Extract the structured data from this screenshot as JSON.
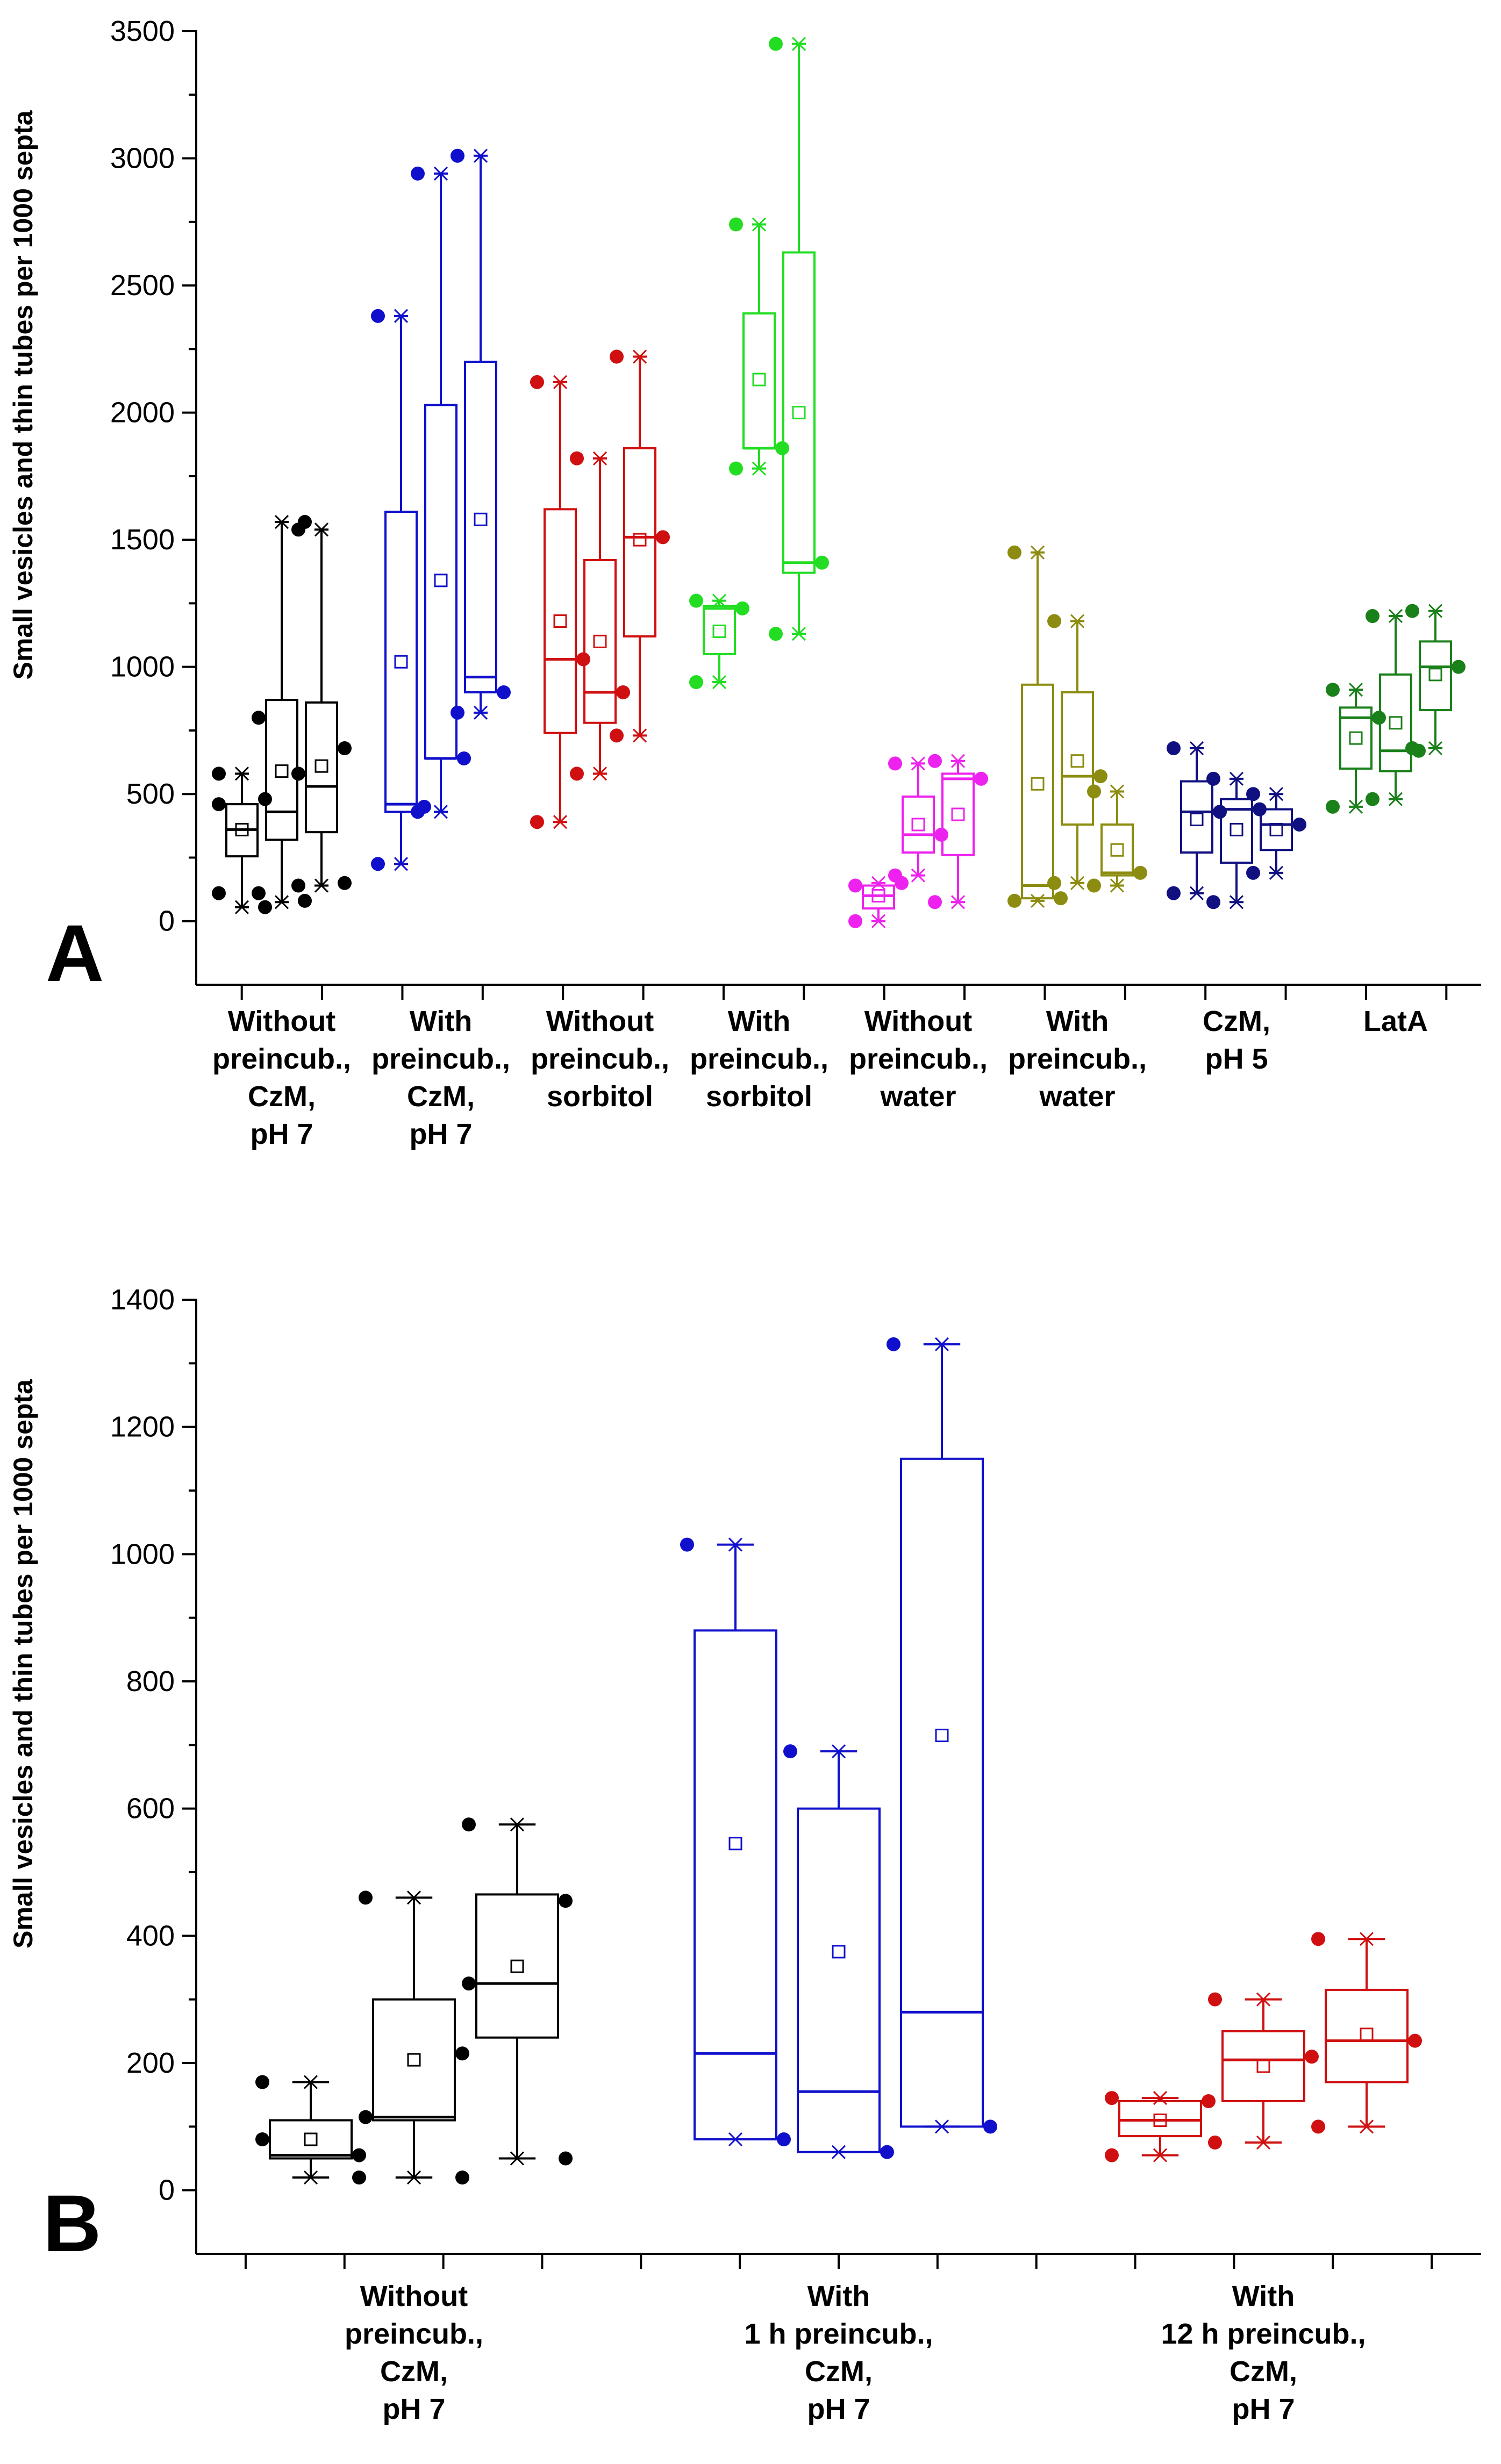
{
  "chart_data": [
    {
      "type": "box",
      "panel_label": "A",
      "ylabel": "Small vesicles and thin tubes per 1000 septa",
      "ylim": [
        -250,
        3500
      ],
      "yticks": [
        "0",
        "500",
        "1000",
        "1500",
        "2000",
        "2500",
        "3000",
        "3500"
      ],
      "groups": [
        {
          "label": [
            "Without",
            "preincub.,",
            "CzM,",
            "pH 7"
          ],
          "color": "#000000",
          "boxes": [
            {
              "q1": 255,
              "median": 360,
              "q3": 460,
              "mean": 360,
              "whisker_low": 55,
              "whisker_high": 580,
              "points": [
                110,
                55,
                460,
                480,
                580
              ]
            },
            {
              "q1": 320,
              "median": 430,
              "q3": 870,
              "mean": 590,
              "whisker_low": 75,
              "whisker_high": 1570,
              "points": [
                110,
                80,
                800,
                1570
              ]
            },
            {
              "q1": 350,
              "median": 530,
              "q3": 860,
              "mean": 610,
              "whisker_low": 140,
              "whisker_high": 1540,
              "points": [
                140,
                150,
                580,
                680,
                1540
              ]
            }
          ]
        },
        {
          "label": [
            "With",
            "preincub.,",
            "CzM,",
            "pH 7"
          ],
          "color": "#1010cc",
          "boxes": [
            {
              "q1": 430,
              "median": 460,
              "q3": 1610,
              "mean": 1020,
              "whisker_low": 225,
              "whisker_high": 2380,
              "points": [
                225,
                450,
                2380
              ]
            },
            {
              "q1": 640,
              "median": 640,
              "q3": 2030,
              "mean": 1340,
              "whisker_low": 430,
              "whisker_high": 2940,
              "points": [
                430,
                640,
                2940
              ]
            },
            {
              "q1": 900,
              "median": 960,
              "q3": 2200,
              "mean": 1580,
              "whisker_low": 820,
              "whisker_high": 3010,
              "points": [
                820,
                900,
                3010
              ]
            }
          ]
        },
        {
          "label": [
            "Without",
            "preincub.,",
            "sorbitol"
          ],
          "color": "#d01010",
          "boxes": [
            {
              "q1": 740,
              "median": 1030,
              "q3": 1620,
              "mean": 1180,
              "whisker_low": 390,
              "whisker_high": 2120,
              "points": [
                390,
                1030,
                2120
              ]
            },
            {
              "q1": 780,
              "median": 900,
              "q3": 1420,
              "mean": 1100,
              "whisker_low": 580,
              "whisker_high": 1820,
              "points": [
                580,
                900,
                1820
              ]
            },
            {
              "q1": 1120,
              "median": 1510,
              "q3": 1860,
              "mean": 1500,
              "whisker_low": 730,
              "whisker_high": 2220,
              "points": [
                730,
                1510,
                2220
              ]
            }
          ]
        },
        {
          "label": [
            "With",
            "preincub.,",
            "sorbitol"
          ],
          "color": "#22dd22",
          "boxes": [
            {
              "q1": 1050,
              "median": 1230,
              "q3": 1240,
              "mean": 1140,
              "whisker_low": 940,
              "whisker_high": 1260,
              "points": [
                940,
                1230,
                1260
              ]
            },
            {
              "q1": 1860,
              "median": 1860,
              "q3": 2390,
              "mean": 2130,
              "whisker_low": 1780,
              "whisker_high": 2740,
              "points": [
                1780,
                1860,
                2740
              ]
            },
            {
              "q1": 1370,
              "median": 1410,
              "q3": 2630,
              "mean": 2000,
              "whisker_low": 1130,
              "whisker_high": 3450,
              "points": [
                1130,
                1410,
                3450
              ]
            }
          ]
        },
        {
          "label": [
            "Without",
            "preincub.,",
            "water"
          ],
          "color": "#ee22ee",
          "boxes": [
            {
              "q1": 50,
              "median": 100,
              "q3": 140,
              "mean": 100,
              "whisker_low": 0,
              "whisker_high": 150,
              "points": [
                0,
                150,
                140
              ]
            },
            {
              "q1": 270,
              "median": 340,
              "q3": 490,
              "mean": 380,
              "whisker_low": 180,
              "whisker_high": 620,
              "points": [
                180,
                340,
                620
              ]
            },
            {
              "q1": 260,
              "median": 560,
              "q3": 580,
              "mean": 420,
              "whisker_low": 75,
              "whisker_high": 630,
              "points": [
                75,
                560,
                630
              ]
            }
          ]
        },
        {
          "label": [
            "With",
            "preincub.,",
            "water"
          ],
          "color": "#8c8c10",
          "boxes": [
            {
              "q1": 90,
              "median": 140,
              "q3": 930,
              "mean": 540,
              "whisker_low": 80,
              "whisker_high": 1450,
              "points": [
                80,
                90,
                1450
              ]
            },
            {
              "q1": 380,
              "median": 570,
              "q3": 900,
              "mean": 630,
              "whisker_low": 150,
              "whisker_high": 1180,
              "points": [
                150,
                570,
                1180
              ]
            },
            {
              "q1": 180,
              "median": 190,
              "q3": 380,
              "mean": 280,
              "whisker_low": 140,
              "whisker_high": 510,
              "points": [
                140,
                190,
                510
              ]
            }
          ]
        },
        {
          "label": [
            "CzM,",
            "pH 5"
          ],
          "color": "#101080",
          "boxes": [
            {
              "q1": 270,
              "median": 430,
              "q3": 550,
              "mean": 400,
              "whisker_low": 110,
              "whisker_high": 680,
              "points": [
                110,
                430,
                680
              ]
            },
            {
              "q1": 230,
              "median": 440,
              "q3": 480,
              "mean": 360,
              "whisker_low": 75,
              "whisker_high": 560,
              "points": [
                75,
                440,
                560
              ]
            },
            {
              "q1": 280,
              "median": 380,
              "q3": 440,
              "mean": 360,
              "whisker_low": 190,
              "whisker_high": 500,
              "points": [
                190,
                380,
                500
              ]
            }
          ]
        },
        {
          "label": [
            "LatA"
          ],
          "color": "#1a801a",
          "boxes": [
            {
              "q1": 600,
              "median": 800,
              "q3": 840,
              "mean": 720,
              "whisker_low": 450,
              "whisker_high": 910,
              "points": [
                450,
                800,
                910
              ]
            },
            {
              "q1": 590,
              "median": 670,
              "q3": 970,
              "mean": 780,
              "whisker_low": 480,
              "whisker_high": 1200,
              "points": [
                480,
                670,
                1200
              ]
            },
            {
              "q1": 830,
              "median": 1000,
              "q3": 1100,
              "mean": 970,
              "whisker_low": 680,
              "whisker_high": 1220,
              "points": [
                680,
                1000,
                1220
              ]
            }
          ]
        }
      ]
    },
    {
      "type": "box",
      "panel_label": "B",
      "ylabel": "Small vesicles and thin tubes per 1000 septa",
      "ylim": [
        -100,
        1400
      ],
      "yticks": [
        "0",
        "200",
        "400",
        "600",
        "800",
        "1000",
        "1200",
        "1400"
      ],
      "groups": [
        {
          "label": [
            "Without",
            "preincub.,",
            "CzM,",
            "pH 7"
          ],
          "color": "#000000",
          "boxes": [
            {
              "q1": 50,
              "median": 55,
              "q3": 110,
              "mean": 80,
              "whisker_low": 20,
              "whisker_high": 170,
              "points": [
                170,
                55,
                80,
                20
              ]
            },
            {
              "q1": 110,
              "median": 115,
              "q3": 300,
              "mean": 205,
              "whisker_low": 20,
              "whisker_high": 460,
              "points": [
                460,
                215,
                115,
                20
              ]
            },
            {
              "q1": 240,
              "median": 325,
              "q3": 465,
              "mean": 352,
              "whisker_low": 50,
              "whisker_high": 575,
              "points": [
                575,
                455,
                325,
                50
              ]
            }
          ]
        },
        {
          "label": [
            "With",
            "1 h preincub.,",
            "CzM,",
            "pH 7"
          ],
          "color": "#1010cc",
          "boxes": [
            {
              "q1": 80,
              "median": 215,
              "q3": 880,
              "mean": 545,
              "whisker_low": 80,
              "whisker_high": 1015,
              "points": [
                1015,
                80
              ]
            },
            {
              "q1": 60,
              "median": 155,
              "q3": 600,
              "mean": 375,
              "whisker_low": 60,
              "whisker_high": 690,
              "points": [
                690,
                60
              ]
            },
            {
              "q1": 100,
              "median": 280,
              "q3": 1150,
              "mean": 715,
              "whisker_low": 100,
              "whisker_high": 1330,
              "points": [
                1330,
                100
              ]
            }
          ]
        },
        {
          "label": [
            "With",
            "12 h preincub.,",
            "CzM,",
            "pH 7"
          ],
          "color": "#d01010",
          "boxes": [
            {
              "q1": 85,
              "median": 110,
              "q3": 140,
              "mean": 110,
              "whisker_low": 55,
              "whisker_high": 145,
              "points": [
                145,
                140,
                55
              ]
            },
            {
              "q1": 140,
              "median": 205,
              "q3": 250,
              "mean": 195,
              "whisker_low": 75,
              "whisker_high": 300,
              "points": [
                300,
                210,
                75
              ]
            },
            {
              "q1": 170,
              "median": 235,
              "q3": 315,
              "mean": 245,
              "whisker_low": 100,
              "whisker_high": 395,
              "points": [
                395,
                235,
                100
              ]
            }
          ]
        }
      ]
    }
  ]
}
